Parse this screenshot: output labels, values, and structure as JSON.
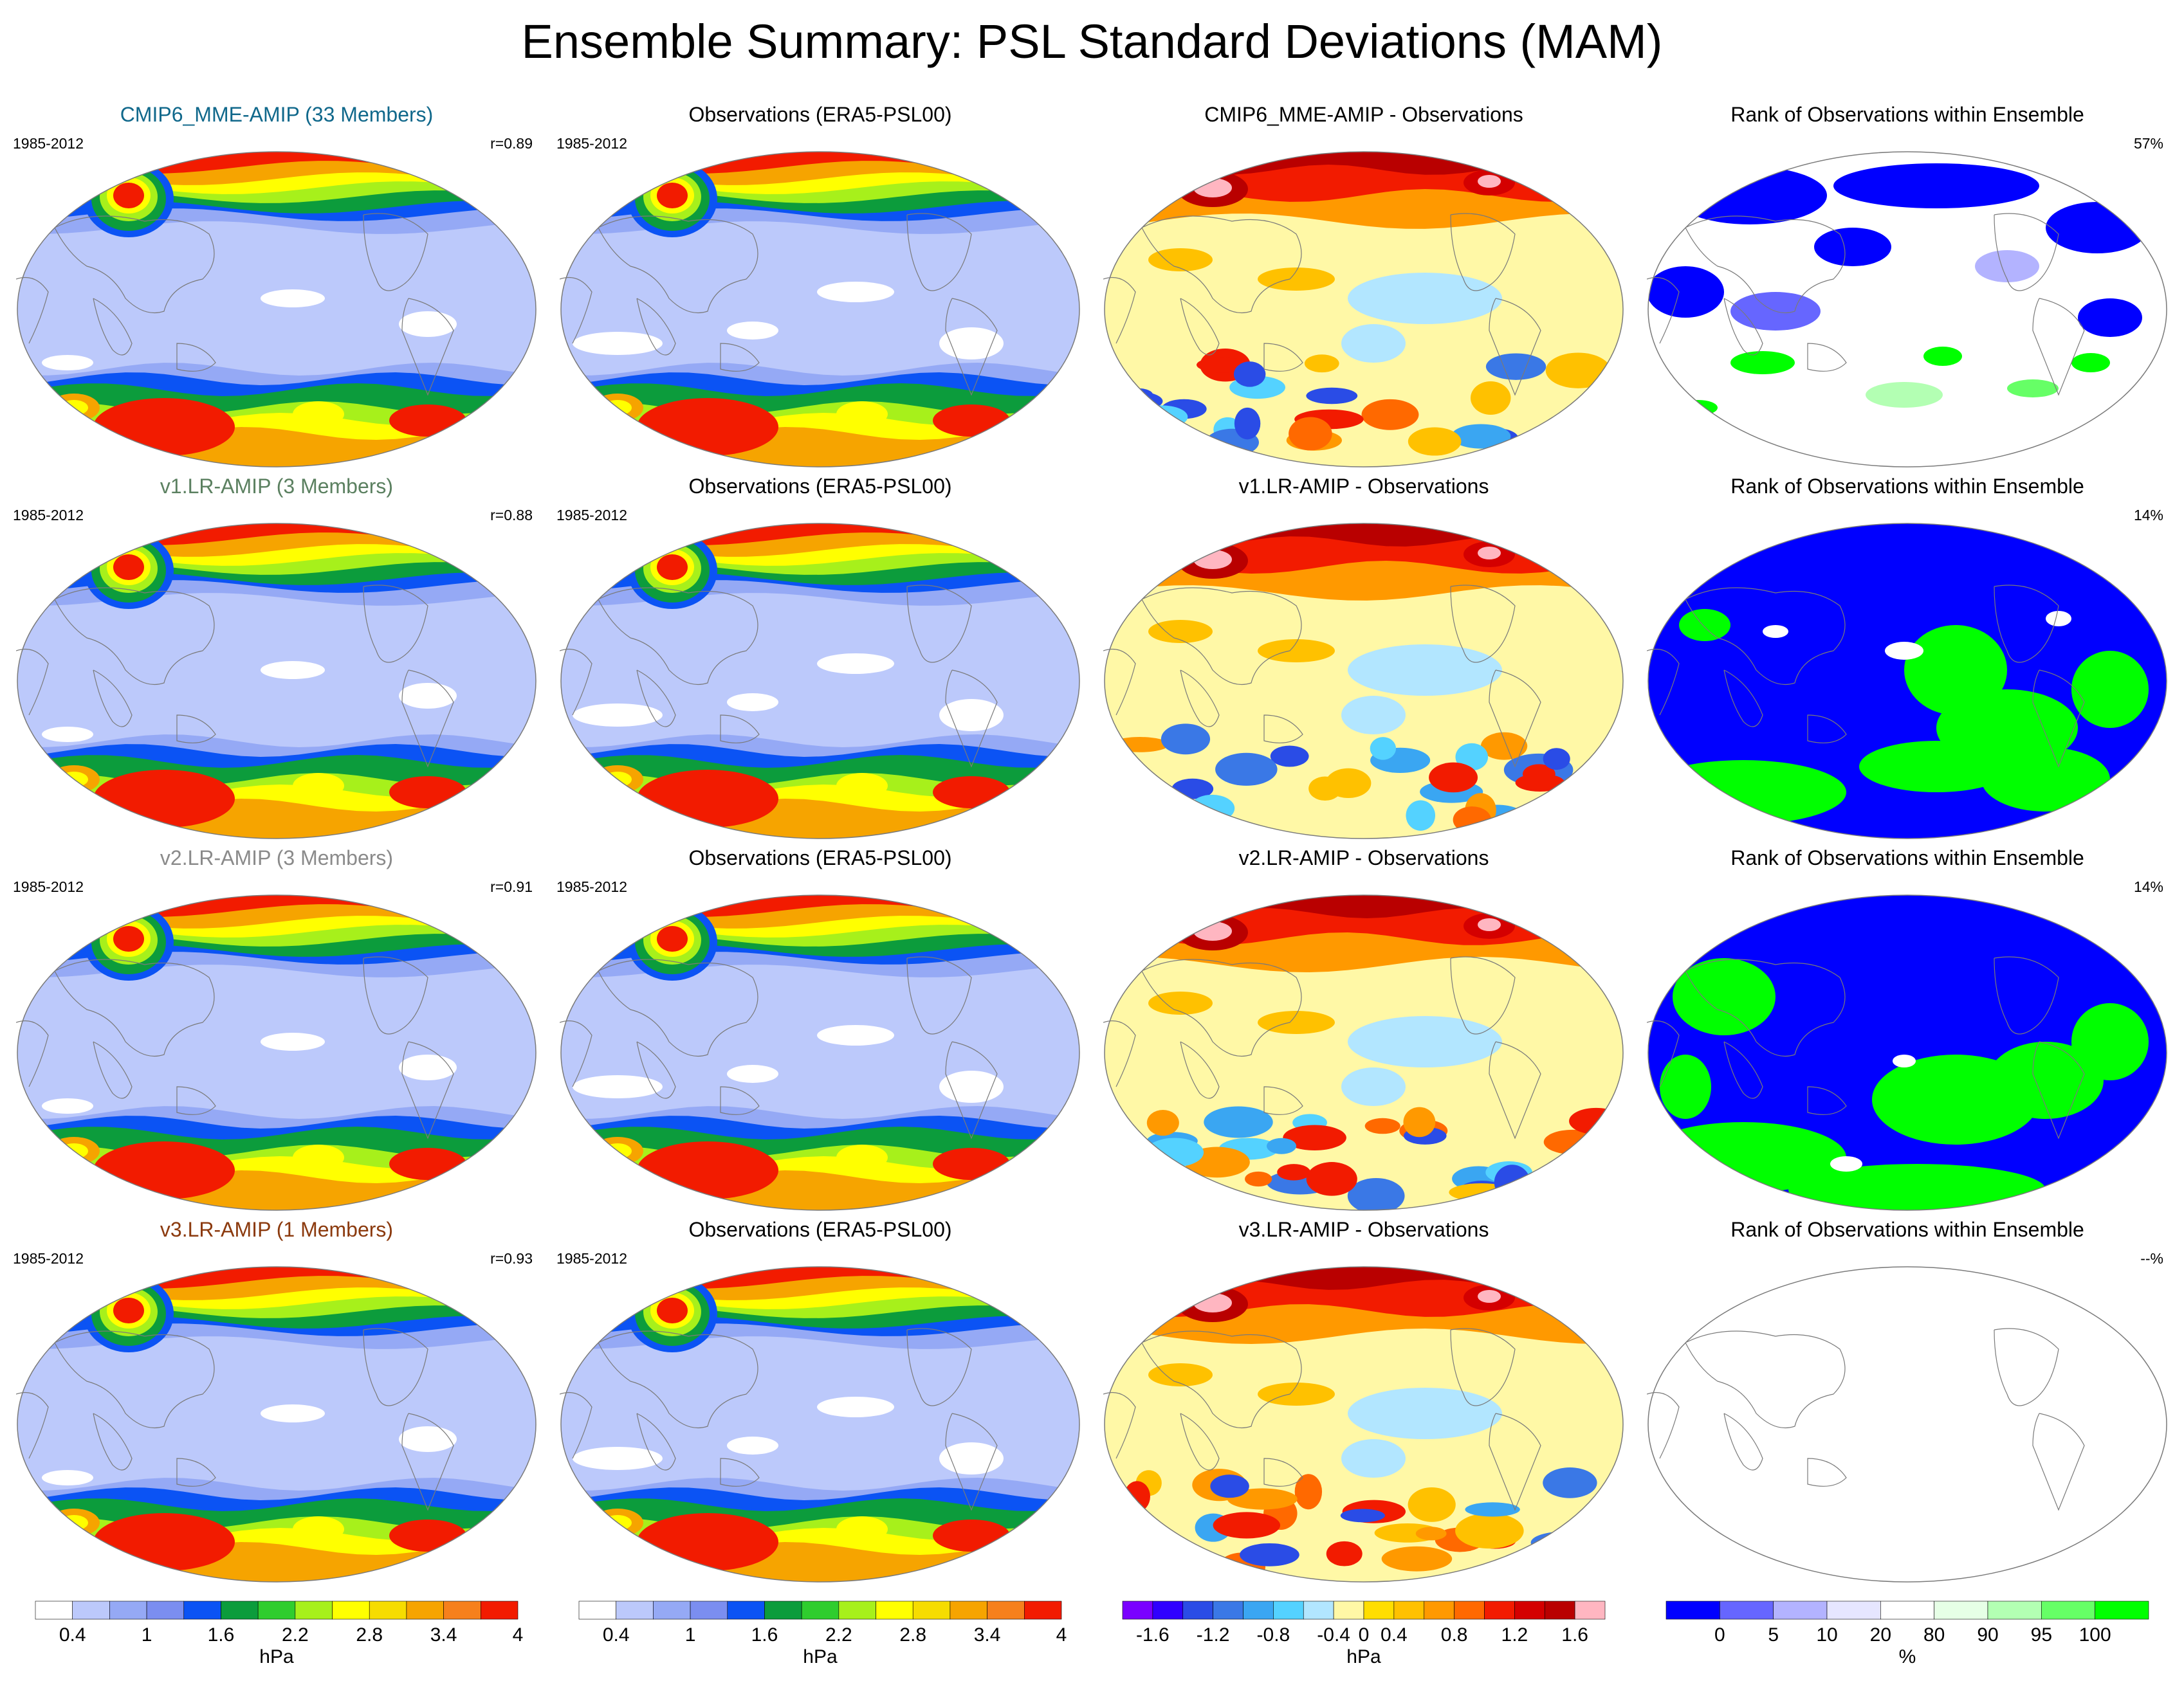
{
  "title": "Ensemble Summary: PSL Standard Deviations (MAM)",
  "period": "1985-2012",
  "colors": {
    "sd": [
      "#ffffff",
      "#bcc9fb",
      "#95a9f5",
      "#7b8ef0",
      "#0b53f4",
      "#0c9c3c",
      "#2fcd2e",
      "#a7f01b",
      "#ffff00",
      "#f6dc00",
      "#f6a400",
      "#f6801c",
      "#f21b00"
    ],
    "diff": [
      "#7a00ff",
      "#3000ff",
      "#2a4ce6",
      "#3a78e6",
      "#3aa6f2",
      "#54d2ff",
      "#b2e6ff",
      "#fff8a6",
      "#ffde00",
      "#ffc100",
      "#ff9900",
      "#ff6900",
      "#f21b00",
      "#d40000",
      "#b90000",
      "#ffb6c1"
    ],
    "rank": [
      "#0000ff",
      "#6666ff",
      "#b3b3ff",
      "#e6e6ff",
      "#ffffff",
      "#e6ffe6",
      "#b3ffb3",
      "#66ff66",
      "#00ff00"
    ]
  },
  "rows": [
    {
      "model": {
        "title": "CMIP6_MME-AMIP (33 Members)",
        "title_color": "#10688b",
        "period": "1985-2012",
        "r": "r=0.89"
      },
      "obs": {
        "title": "Observations (ERA5-PSL00)",
        "period": "1985-2012"
      },
      "diff": {
        "title": "CMIP6_MME-AMIP - Observations"
      },
      "rank": {
        "title": "Rank of Observations within Ensemble",
        "pct": "57%"
      }
    },
    {
      "model": {
        "title": "v1.LR-AMIP (3 Members)",
        "title_color": "#5b8060",
        "period": "1985-2012",
        "r": "r=0.88"
      },
      "obs": {
        "title": "Observations (ERA5-PSL00)",
        "period": "1985-2012"
      },
      "diff": {
        "title": "v1.LR-AMIP - Observations"
      },
      "rank": {
        "title": "Rank of Observations within Ensemble",
        "pct": "14%"
      }
    },
    {
      "model": {
        "title": "v2.LR-AMIP (3 Members)",
        "title_color": "#8a8a8a",
        "period": "1985-2012",
        "r": "r=0.91"
      },
      "obs": {
        "title": "Observations (ERA5-PSL00)",
        "period": "1985-2012"
      },
      "diff": {
        "title": "v2.LR-AMIP - Observations"
      },
      "rank": {
        "title": "Rank of Observations within Ensemble",
        "pct": "14%"
      }
    },
    {
      "model": {
        "title": "v3.LR-AMIP (1 Members)",
        "title_color": "#8b3a0e",
        "period": "1985-2012",
        "r": "r=0.93"
      },
      "obs": {
        "title": "Observations (ERA5-PSL00)",
        "period": "1985-2012"
      },
      "diff": {
        "title": "v3.LR-AMIP - Observations"
      },
      "rank": {
        "title": "Rank of Observations within Ensemble",
        "pct": "--%"
      }
    }
  ],
  "colorbars": {
    "sd": {
      "labels": [
        "0.4",
        "1",
        "1.6",
        "2.2",
        "2.8",
        "3.4",
        "4"
      ],
      "unit": "hPa"
    },
    "diff": {
      "labels": [
        "-1.6",
        "-1.2",
        "-0.8",
        "-0.4",
        "0",
        "0.4",
        "0.8",
        "1.2",
        "1.6"
      ],
      "unit": "hPa"
    },
    "rank": {
      "labels": [
        "0",
        "5",
        "10",
        "20",
        "80",
        "90",
        "95",
        "100"
      ],
      "unit": "%"
    }
  }
}
